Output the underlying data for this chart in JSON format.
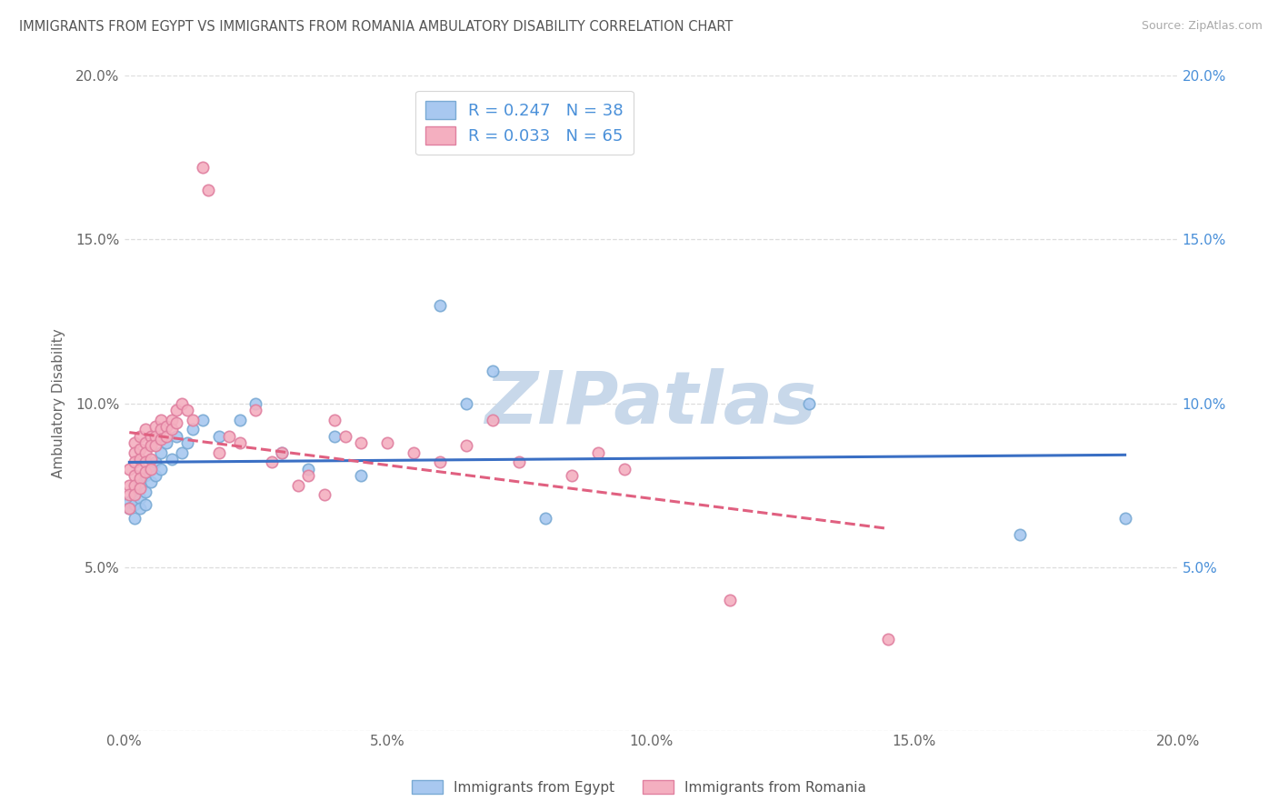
{
  "title": "IMMIGRANTS FROM EGYPT VS IMMIGRANTS FROM ROMANIA AMBULATORY DISABILITY CORRELATION CHART",
  "source": "Source: ZipAtlas.com",
  "ylabel": "Ambulatory Disability",
  "xlim": [
    0.0,
    0.2
  ],
  "ylim": [
    0.0,
    0.2
  ],
  "x_ticks": [
    0.0,
    0.05,
    0.1,
    0.15,
    0.2
  ],
  "y_ticks": [
    0.0,
    0.05,
    0.1,
    0.15,
    0.2
  ],
  "x_tick_labels": [
    "0.0%",
    "5.0%",
    "10.0%",
    "15.0%",
    "20.0%"
  ],
  "y_tick_labels": [
    "",
    "5.0%",
    "10.0%",
    "15.0%",
    "20.0%"
  ],
  "right_y_tick_labels": [
    "",
    "5.0%",
    "10.0%",
    "15.0%",
    "20.0%"
  ],
  "egypt_color": "#a8c8f0",
  "egypt_edge_color": "#7aaad4",
  "romania_color": "#f4afc0",
  "romania_edge_color": "#e080a0",
  "egypt_line_color": "#3a6fc4",
  "romania_line_color": "#e06080",
  "right_tick_color": "#4a90d9",
  "egypt_R": 0.247,
  "egypt_N": 38,
  "romania_R": 0.033,
  "romania_N": 65,
  "legend_label_egypt": "Immigrants from Egypt",
  "legend_label_romania": "Immigrants from Romania",
  "egypt_scatter": [
    [
      0.001,
      0.07
    ],
    [
      0.001,
      0.068
    ],
    [
      0.002,
      0.072
    ],
    [
      0.002,
      0.069
    ],
    [
      0.002,
      0.065
    ],
    [
      0.003,
      0.075
    ],
    [
      0.003,
      0.071
    ],
    [
      0.003,
      0.068
    ],
    [
      0.004,
      0.078
    ],
    [
      0.004,
      0.073
    ],
    [
      0.004,
      0.069
    ],
    [
      0.005,
      0.08
    ],
    [
      0.005,
      0.076
    ],
    [
      0.006,
      0.082
    ],
    [
      0.006,
      0.078
    ],
    [
      0.007,
      0.085
    ],
    [
      0.007,
      0.08
    ],
    [
      0.008,
      0.088
    ],
    [
      0.009,
      0.083
    ],
    [
      0.01,
      0.09
    ],
    [
      0.011,
      0.085
    ],
    [
      0.012,
      0.088
    ],
    [
      0.013,
      0.092
    ],
    [
      0.015,
      0.095
    ],
    [
      0.018,
      0.09
    ],
    [
      0.022,
      0.095
    ],
    [
      0.025,
      0.1
    ],
    [
      0.03,
      0.085
    ],
    [
      0.035,
      0.08
    ],
    [
      0.04,
      0.09
    ],
    [
      0.045,
      0.078
    ],
    [
      0.06,
      0.13
    ],
    [
      0.065,
      0.1
    ],
    [
      0.07,
      0.11
    ],
    [
      0.08,
      0.065
    ],
    [
      0.13,
      0.1
    ],
    [
      0.17,
      0.06
    ],
    [
      0.19,
      0.065
    ]
  ],
  "romania_scatter": [
    [
      0.001,
      0.08
    ],
    [
      0.001,
      0.075
    ],
    [
      0.001,
      0.072
    ],
    [
      0.001,
      0.068
    ],
    [
      0.002,
      0.088
    ],
    [
      0.002,
      0.085
    ],
    [
      0.002,
      0.082
    ],
    [
      0.002,
      0.078
    ],
    [
      0.002,
      0.075
    ],
    [
      0.002,
      0.072
    ],
    [
      0.003,
      0.09
    ],
    [
      0.003,
      0.086
    ],
    [
      0.003,
      0.083
    ],
    [
      0.003,
      0.08
    ],
    [
      0.003,
      0.077
    ],
    [
      0.003,
      0.074
    ],
    [
      0.004,
      0.092
    ],
    [
      0.004,
      0.088
    ],
    [
      0.004,
      0.085
    ],
    [
      0.004,
      0.082
    ],
    [
      0.004,
      0.079
    ],
    [
      0.005,
      0.09
    ],
    [
      0.005,
      0.087
    ],
    [
      0.005,
      0.083
    ],
    [
      0.005,
      0.08
    ],
    [
      0.006,
      0.093
    ],
    [
      0.006,
      0.09
    ],
    [
      0.006,
      0.087
    ],
    [
      0.007,
      0.095
    ],
    [
      0.007,
      0.092
    ],
    [
      0.007,
      0.089
    ],
    [
      0.008,
      0.093
    ],
    [
      0.008,
      0.09
    ],
    [
      0.009,
      0.095
    ],
    [
      0.009,
      0.092
    ],
    [
      0.01,
      0.098
    ],
    [
      0.01,
      0.094
    ],
    [
      0.011,
      0.1
    ],
    [
      0.012,
      0.098
    ],
    [
      0.013,
      0.095
    ],
    [
      0.015,
      0.172
    ],
    [
      0.016,
      0.165
    ],
    [
      0.018,
      0.085
    ],
    [
      0.02,
      0.09
    ],
    [
      0.022,
      0.088
    ],
    [
      0.025,
      0.098
    ],
    [
      0.028,
      0.082
    ],
    [
      0.03,
      0.085
    ],
    [
      0.033,
      0.075
    ],
    [
      0.035,
      0.078
    ],
    [
      0.038,
      0.072
    ],
    [
      0.04,
      0.095
    ],
    [
      0.042,
      0.09
    ],
    [
      0.045,
      0.088
    ],
    [
      0.05,
      0.088
    ],
    [
      0.055,
      0.085
    ],
    [
      0.06,
      0.082
    ],
    [
      0.065,
      0.087
    ],
    [
      0.07,
      0.095
    ],
    [
      0.075,
      0.082
    ],
    [
      0.085,
      0.078
    ],
    [
      0.09,
      0.085
    ],
    [
      0.095,
      0.08
    ],
    [
      0.115,
      0.04
    ],
    [
      0.145,
      0.028
    ]
  ],
  "watermark_text": "ZIPatlas",
  "watermark_color": "#c8d8ea",
  "background_color": "#ffffff",
  "grid_color": "#dddddd",
  "grid_linestyle": "--",
  "spine_color": "#cccccc"
}
